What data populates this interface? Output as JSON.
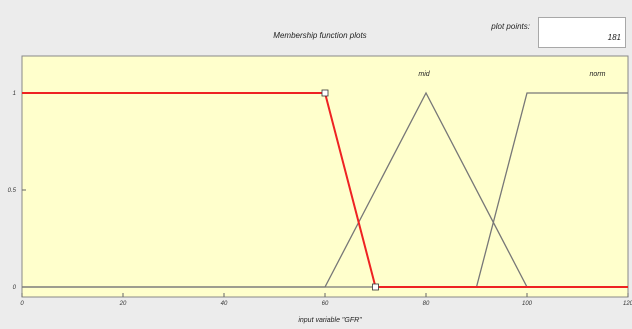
{
  "window": {
    "title": "Membership function plots",
    "plot_points_label": "plot points:",
    "plot_points_value": "181"
  },
  "colors": {
    "axes_bg": "#ffffcc",
    "selected": "#ee2222",
    "curve": "#777777"
  },
  "chart_data": {
    "type": "line",
    "title": "Membership function plots",
    "xlabel": "input variable \"GFR\"",
    "ylabel": "",
    "xlim": [
      0,
      120
    ],
    "ylim": [
      0,
      1
    ],
    "x_ticks": [
      0,
      20,
      40,
      60,
      80,
      100,
      120
    ],
    "y_ticks": [
      0,
      0.5,
      1
    ],
    "grid": false,
    "series": [
      {
        "name": "",
        "selected": true,
        "x": [
          0,
          60,
          70,
          120
        ],
        "y": [
          1,
          1,
          0,
          0
        ]
      },
      {
        "name": "mid",
        "selected": false,
        "x": [
          0,
          60,
          80,
          100,
          120
        ],
        "y": [
          0,
          0,
          1,
          0,
          0
        ]
      },
      {
        "name": "norm",
        "selected": false,
        "x": [
          0,
          90,
          100,
          120
        ],
        "y": [
          0,
          0,
          1,
          1
        ]
      }
    ]
  }
}
